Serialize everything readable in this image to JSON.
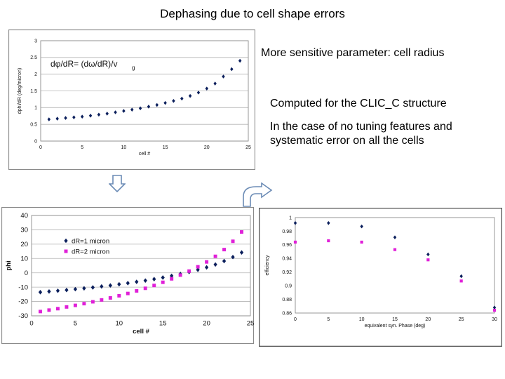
{
  "slide": {
    "title": "Dephasing due to cell shape errors",
    "notes": {
      "sensitive": "More sensitive parameter: cell radius",
      "computed": "Computed for the CLIC_C structure",
      "case": "In the case of no tuning features and systematic error on all the cells"
    },
    "icons": {
      "down": "down-arrow-icon",
      "curved": "curved-arrow-icon"
    }
  },
  "chart_data": [
    {
      "id": "dphi-dR",
      "type": "scatter",
      "title": "",
      "annotation": "dφ/dR= (dω/dR)/v",
      "annotation_sub": "g",
      "xlabel": "cell #",
      "ylabel": "dphi/dR (deg/micron)",
      "xlim": [
        0,
        25
      ],
      "ylim": [
        0,
        3
      ],
      "xticks": [
        0,
        5,
        10,
        15,
        20,
        25
      ],
      "yticks": [
        0,
        0.5,
        1,
        1.5,
        2,
        2.5,
        3
      ],
      "ytick_labels": [
        "0",
        "0.5",
        "1",
        "1.5",
        "2",
        "2.5",
        "3"
      ],
      "grid": "horizontal",
      "series": [
        {
          "name": "dphi/dR",
          "color": "#0b1f5c",
          "marker": "diamond",
          "x": [
            1,
            2,
            3,
            4,
            5,
            6,
            7,
            8,
            9,
            10,
            11,
            12,
            13,
            14,
            15,
            16,
            17,
            18,
            19,
            20,
            21,
            22,
            23,
            24
          ],
          "y": [
            0.65,
            0.67,
            0.69,
            0.71,
            0.73,
            0.76,
            0.79,
            0.82,
            0.86,
            0.9,
            0.94,
            0.98,
            1.03,
            1.08,
            1.14,
            1.2,
            1.27,
            1.35,
            1.45,
            1.57,
            1.72,
            1.93,
            2.15,
            2.4
          ]
        }
      ]
    },
    {
      "id": "phi-cell",
      "type": "scatter",
      "title": "",
      "xlabel": "cell #",
      "ylabel": "phi",
      "xlim": [
        0,
        25
      ],
      "ylim": [
        -30,
        40
      ],
      "xticks": [
        0,
        5,
        10,
        15,
        20,
        25
      ],
      "yticks": [
        -30,
        -20,
        -10,
        0,
        10,
        20,
        30,
        40
      ],
      "ytick_labels": [
        "-30",
        "-20",
        "-10",
        "0",
        "10",
        "20",
        "30",
        "40"
      ],
      "grid": "horizontal",
      "legend": "middle-left",
      "series": [
        {
          "name": "dR=1 micron",
          "color": "#0b1f5c",
          "marker": "diamond",
          "x": [
            1,
            2,
            3,
            4,
            5,
            6,
            7,
            8,
            9,
            10,
            11,
            12,
            13,
            14,
            15,
            16,
            17,
            18,
            19,
            20,
            21,
            22,
            23,
            24
          ],
          "y": [
            -13.5,
            -13.0,
            -12.5,
            -12.0,
            -11.4,
            -10.8,
            -10.2,
            -9.5,
            -8.8,
            -8.0,
            -7.2,
            -6.3,
            -5.4,
            -4.4,
            -3.3,
            -2.1,
            -0.8,
            0.6,
            2.1,
            3.8,
            5.8,
            8.2,
            11.0,
            14.2
          ]
        },
        {
          "name": "dR=2 micron",
          "color": "#e020d8",
          "marker": "square",
          "x": [
            1,
            2,
            3,
            4,
            5,
            6,
            7,
            8,
            9,
            10,
            11,
            12,
            13,
            14,
            15,
            16,
            17,
            18,
            19,
            20,
            21,
            22,
            23,
            24
          ],
          "y": [
            -27.0,
            -26.0,
            -25.0,
            -23.8,
            -22.7,
            -21.5,
            -20.2,
            -18.9,
            -17.5,
            -16.0,
            -14.4,
            -12.6,
            -10.8,
            -8.8,
            -6.6,
            -4.2,
            -1.6,
            1.2,
            4.2,
            7.6,
            11.5,
            16.2,
            22.0,
            28.5
          ]
        }
      ]
    },
    {
      "id": "efficiency-phase",
      "type": "scatter",
      "title": "",
      "xlabel": "equivalent syn. Phase (deg)",
      "ylabel": "efficiency",
      "xlim": [
        0,
        30
      ],
      "ylim": [
        0.86,
        1
      ],
      "xticks": [
        0,
        5,
        10,
        15,
        20,
        25,
        30
      ],
      "yticks": [
        0.86,
        0.88,
        0.9,
        0.92,
        0.94,
        0.96,
        0.98,
        1
      ],
      "ytick_labels": [
        "0.86",
        "0.88",
        "0.9",
        "0.92",
        "0.94",
        "0.96",
        "0.98",
        "1"
      ],
      "grid": "none",
      "series": [
        {
          "name": "diamonds",
          "color": "#0b1f5c",
          "marker": "diamond",
          "x": [
            0,
            5,
            10,
            15,
            20,
            25,
            30
          ],
          "y": [
            0.992,
            0.992,
            0.987,
            0.971,
            0.946,
            0.914,
            0.868
          ]
        },
        {
          "name": "squares",
          "color": "#e020d8",
          "marker": "square",
          "x": [
            0,
            5,
            10,
            15,
            20,
            25,
            30
          ],
          "y": [
            0.964,
            0.966,
            0.964,
            0.953,
            0.938,
            0.907,
            0.864
          ]
        }
      ]
    }
  ]
}
